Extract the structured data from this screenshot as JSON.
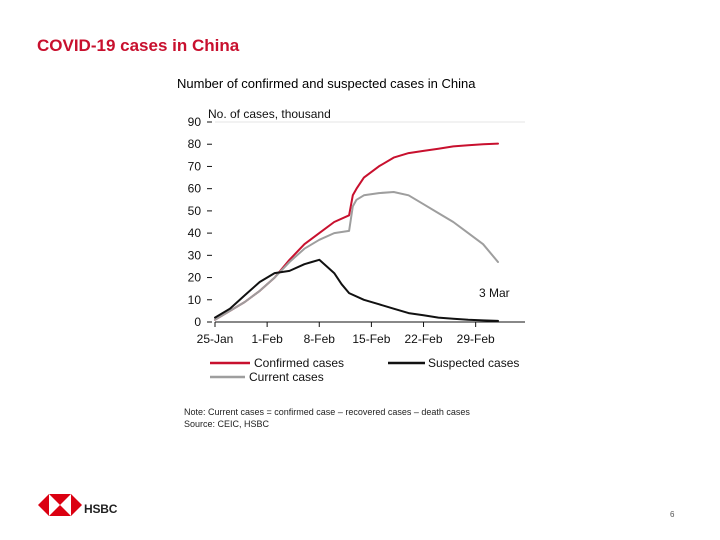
{
  "slide": {
    "title": "COVID-19 cases in China",
    "page_number": "6",
    "brand": "HSBC",
    "note_line1": "Note: Current cases = confirmed case – recovered cases – death cases",
    "note_line2": "Source: CEIC, HSBC"
  },
  "colors": {
    "title": "#c8102e",
    "confirmed": "#c8102e",
    "current": "#9e9e9e",
    "suspected": "#111111",
    "logo_red": "#db0011"
  },
  "chart_data": {
    "type": "line",
    "title": "Number of confirmed and suspected cases in China",
    "ylabel": "No. of cases,  thousand",
    "xlabel": "",
    "annotation": "3 Mar",
    "ylim": [
      0,
      90
    ],
    "yticks": [
      0,
      10,
      20,
      30,
      40,
      50,
      60,
      70,
      80,
      90
    ],
    "xlim": [
      0,
      38
    ],
    "xticks": [
      {
        "day": 0,
        "label": "25-Jan"
      },
      {
        "day": 7,
        "label": "1-Feb"
      },
      {
        "day": 14,
        "label": "8-Feb"
      },
      {
        "day": 21,
        "label": "15-Feb"
      },
      {
        "day": 28,
        "label": "22-Feb"
      },
      {
        "day": 35,
        "label": "29-Feb"
      }
    ],
    "legend": [
      "Confirmed cases",
      "Suspected cases",
      "Current cases"
    ],
    "series": [
      {
        "name": "Confirmed cases",
        "x": [
          0,
          2,
          4,
          6,
          8,
          10,
          12,
          14,
          16,
          18,
          18.5,
          19,
          20,
          22,
          24,
          26,
          28,
          30,
          32,
          34,
          36,
          38
        ],
        "values": [
          1,
          5,
          9,
          14,
          20,
          28,
          35,
          40,
          45,
          48,
          57,
          60,
          65,
          70,
          74,
          76,
          77,
          78,
          79,
          79.5,
          80,
          80.3
        ]
      },
      {
        "name": "Current cases",
        "x": [
          0,
          2,
          4,
          6,
          8,
          10,
          12,
          14,
          16,
          18,
          18.5,
          19,
          20,
          22,
          24,
          26,
          28,
          30,
          32,
          34,
          36,
          38
        ],
        "values": [
          1,
          5,
          9,
          14,
          20,
          27,
          33,
          37,
          40,
          41,
          52,
          55,
          57,
          58,
          58.5,
          57,
          53,
          49,
          45,
          40,
          35,
          27
        ]
      },
      {
        "name": "Suspected cases",
        "x": [
          0,
          2,
          4,
          6,
          8,
          10,
          12,
          13,
          14,
          15,
          16,
          17,
          18,
          20,
          22,
          24,
          26,
          28,
          30,
          32,
          34,
          36,
          38
        ],
        "values": [
          2,
          6,
          12,
          18,
          22,
          23,
          26,
          27,
          28,
          25,
          22,
          17,
          13,
          10,
          8,
          6,
          4,
          3,
          2,
          1.5,
          1,
          0.7,
          0.5
        ]
      }
    ]
  }
}
